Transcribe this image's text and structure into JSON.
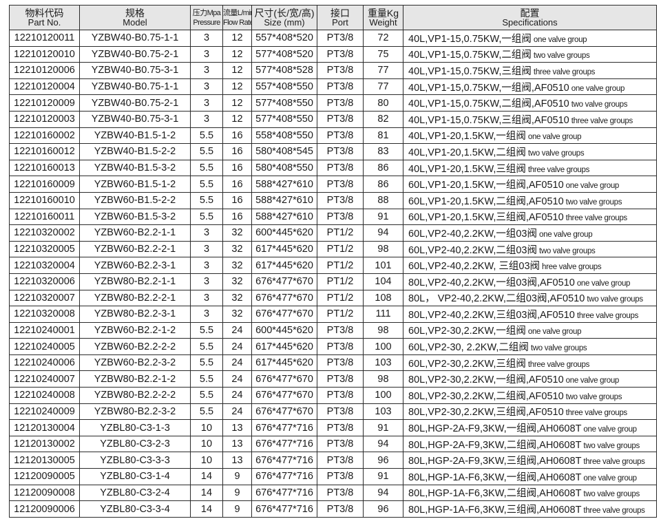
{
  "headers": [
    {
      "cn": "物料代码",
      "en": "Part No."
    },
    {
      "cn": "规格",
      "en": "Model"
    },
    {
      "cn": "压力Mpa",
      "en": "Pressure"
    },
    {
      "cn": "流量L/min",
      "en": "Flow Rate"
    },
    {
      "cn": "尺寸(长/宽/高)",
      "en": "Size (mm)"
    },
    {
      "cn": "接口",
      "en": "Port"
    },
    {
      "cn": "重量Kg",
      "en": "Weight"
    },
    {
      "cn": "配置",
      "en": "Specifications"
    }
  ],
  "rows": [
    {
      "part": "12210120011",
      "model": "YZBW40-B0.75-1-1",
      "pressure": "3",
      "flow": "12",
      "size": "557*408*520",
      "port": "PT3/8",
      "weight": "72",
      "spec": "40L,VP1-15,0.75KW,一组阀",
      "note": "one valve group"
    },
    {
      "part": "12210120010",
      "model": "YZBW40-B0.75-2-1",
      "pressure": "3",
      "flow": "12",
      "size": "577*408*520",
      "port": "PT3/8",
      "weight": "75",
      "spec": "40L,VP1-15,0.75KW,二组阀",
      "note": "two valve groups"
    },
    {
      "part": "12210120006",
      "model": "YZBW40-B0.75-3-1",
      "pressure": "3",
      "flow": "12",
      "size": "577*408*528",
      "port": "PT3/8",
      "weight": "77",
      "spec": "40L,VP1-15,0.75KW,三组阀",
      "note": "three valve groups"
    },
    {
      "part": "12210120004",
      "model": "YZBW40-B0.75-1-1",
      "pressure": "3",
      "flow": "12",
      "size": "557*408*550",
      "port": "PT3/8",
      "weight": "77",
      "spec": "40L,VP1-15,0.75KW,一组阀,AF0510",
      "note": "one valve group"
    },
    {
      "part": "12210120009",
      "model": "YZBW40-B0.75-2-1",
      "pressure": "3",
      "flow": "12",
      "size": "577*408*550",
      "port": "PT3/8",
      "weight": "80",
      "spec": "40L,VP1-15,0.75KW,二组阀,AF0510",
      "note": "two valve groups"
    },
    {
      "part": "12210120003",
      "model": "YZBW40-B0.75-3-1",
      "pressure": "3",
      "flow": "12",
      "size": "577*408*550",
      "port": "PT3/8",
      "weight": "82",
      "spec": "40L,VP1-15,0.75KW,三组阀,AF0510",
      "note": "three valve groups"
    },
    {
      "part": "12210160002",
      "model": "YZBW40-B1.5-1-2",
      "pressure": "5.5",
      "flow": "16",
      "size": "558*408*550",
      "port": "PT3/8",
      "weight": "81",
      "spec": "40L,VP1-20,1.5KW,一组阀",
      "note": "one valve group"
    },
    {
      "part": "12210160012",
      "model": "YZBW40-B1.5-2-2",
      "pressure": "5.5",
      "flow": "16",
      "size": "580*408*545",
      "port": "PT3/8",
      "weight": "83",
      "spec": "40L,VP1-20,1.5KW,二组阀",
      "note": "two valve groups"
    },
    {
      "part": "12210160013",
      "model": "YZBW40-B1.5-3-2",
      "pressure": "5.5",
      "flow": "16",
      "size": "580*408*550",
      "port": "PT3/8",
      "weight": "86",
      "spec": "40L,VP1-20,1.5KW,三组阀",
      "note": "three valve groups"
    },
    {
      "part": "12210160009",
      "model": "YZBW60-B1.5-1-2",
      "pressure": "5.5",
      "flow": "16",
      "size": "588*427*610",
      "port": "PT3/8",
      "weight": "86",
      "spec": "60L,VP1-20,1.5KW,一组阀,AF0510",
      "note": "one valve group"
    },
    {
      "part": "12210160010",
      "model": "YZBW60-B1.5-2-2",
      "pressure": "5.5",
      "flow": "16",
      "size": "588*427*610",
      "port": "PT3/8",
      "weight": "88",
      "spec": "60L,VP1-20,1.5KW,二组阀,AF0510",
      "note": "two valve groups"
    },
    {
      "part": "12210160011",
      "model": "YZBW60-B1.5-3-2",
      "pressure": "5.5",
      "flow": "16",
      "size": "588*427*610",
      "port": "PT3/8",
      "weight": "91",
      "spec": "60L,VP1-20,1.5KW,三组阀,AF0510",
      "note": "three valve groups"
    },
    {
      "part": "12210320002",
      "model": "YZBW60-B2.2-1-1",
      "pressure": "3",
      "flow": "32",
      "size": "600*445*620",
      "port": "PT1/2",
      "weight": "94",
      "spec": "60L,VP2-40,2.2KW,一组03阀",
      "note": "one valve group"
    },
    {
      "part": "12210320005",
      "model": "YZBW60-B2.2-2-1",
      "pressure": "3",
      "flow": "32",
      "size": "617*445*620",
      "port": "PT1/2",
      "weight": "98",
      "spec": "60L,VP2-40,2.2KW,二组03阀",
      "note": "two valve groups"
    },
    {
      "part": "12210320004",
      "model": "YZBW60-B2.2-3-1",
      "pressure": "3",
      "flow": "32",
      "size": "617*445*620",
      "port": "PT1/2",
      "weight": "101",
      "spec": "60L,VP2-40,2.2KW, 三组03阀",
      "note": "hree valve groups"
    },
    {
      "part": "12210320006",
      "model": "YZBW80-B2.2-1-1",
      "pressure": "3",
      "flow": "32",
      "size": "676*477*670",
      "port": "PT1/2",
      "weight": "104",
      "spec": "80L,VP2-40,2.2KW,一组03阀,AF0510",
      "note": "one valve group"
    },
    {
      "part": "12210320007",
      "model": "YZBW80-B2.2-2-1",
      "pressure": "3",
      "flow": "32",
      "size": "676*477*670",
      "port": "PT1/2",
      "weight": "108",
      "spec": "80L， VP2-40,2.2KW,二组03阀,AF0510",
      "note": "two valve groups"
    },
    {
      "part": "12210320008",
      "model": "YZBW80-B2.2-3-1",
      "pressure": "3",
      "flow": "32",
      "size": "676*477*670",
      "port": "PT1/2",
      "weight": "111",
      "spec": "80L,VP2-40,2.2KW,三组03阀,AF0510",
      "note": "three valve groups"
    },
    {
      "part": "12210240001",
      "model": "YZBW60-B2.2-1-2",
      "pressure": "5.5",
      "flow": "24",
      "size": "600*445*620",
      "port": "PT3/8",
      "weight": "98",
      "spec": "60L,VP2-30,2.2KW,一组阀",
      "note": "one valve group"
    },
    {
      "part": "12210240005",
      "model": "YZBW60-B2.2-2-2",
      "pressure": "5.5",
      "flow": "24",
      "size": "617*445*620",
      "port": "PT3/8",
      "weight": "100",
      "spec": "60L,VP2-30, 2.2KW,二组阀",
      "note": "two valve groups"
    },
    {
      "part": "12210240006",
      "model": "YZBW60-B2.2-3-2",
      "pressure": "5.5",
      "flow": "24",
      "size": "617*445*620",
      "port": "PT3/8",
      "weight": "103",
      "spec": "60L,VP2-30,2.2KW,三组阀",
      "note": "three valve groups"
    },
    {
      "part": "12210240007",
      "model": "YZBW80-B2.2-1-2",
      "pressure": "5.5",
      "flow": "24",
      "size": "676*477*670",
      "port": "PT3/8",
      "weight": "98",
      "spec": "80L,VP2-30,2.2KW,一组阀,AF0510",
      "note": "one valve group"
    },
    {
      "part": "12210240008",
      "model": "YZBW80-B2.2-2-2",
      "pressure": "5.5",
      "flow": "24",
      "size": "676*477*670",
      "port": "PT3/8",
      "weight": "100",
      "spec": "80L,VP2-30,2.2KW,二组阀,AF0510",
      "note": "two valve groups"
    },
    {
      "part": "12210240009",
      "model": "YZBW80-B2.2-3-2",
      "pressure": "5.5",
      "flow": "24",
      "size": "676*477*670",
      "port": "PT3/8",
      "weight": "103",
      "spec": "80L,VP2-30,2.2KW,三组阀,AF0510",
      "note": "three valve groups"
    },
    {
      "part": "12120130004",
      "model": "YZBL80-C3-1-3",
      "pressure": "10",
      "flow": "13",
      "size": "676*477*716",
      "port": "PT3/8",
      "weight": "91",
      "spec": "80L,HGP-2A-F9,3KW,一组阀,AH0608T",
      "note": "one valve group"
    },
    {
      "part": "12120130002",
      "model": "YZBL80-C3-2-3",
      "pressure": "10",
      "flow": "13",
      "size": "676*477*716",
      "port": "PT3/8",
      "weight": "94",
      "spec": "80L,HGP-2A-F9,3KW,二组阀,AH0608T",
      "note": "two valve groups"
    },
    {
      "part": "12120130005",
      "model": "YZBL80-C3-3-3",
      "pressure": "10",
      "flow": "13",
      "size": "676*477*716",
      "port": "PT3/8",
      "weight": "96",
      "spec": "80L,HGP-2A-F9,3KW,三组阀,AH0608T",
      "note": "three valve groups"
    },
    {
      "part": "12120090005",
      "model": "YZBL80-C3-1-4",
      "pressure": "14",
      "flow": "9",
      "size": "676*477*716",
      "port": "PT3/8",
      "weight": "91",
      "spec": "80L,HGP-1A-F6,3KW,一组阀,AH0608T",
      "note": "one valve group"
    },
    {
      "part": "12120090008",
      "model": "YZBL80-C3-2-4",
      "pressure": "14",
      "flow": "9",
      "size": "676*477*716",
      "port": "PT3/8",
      "weight": "94",
      "spec": "80L,HGP-1A-F6,3KW,二组阀,AH0608T",
      "note": "two valve groups"
    },
    {
      "part": "12120090006",
      "model": "YZBL80-C3-3-4",
      "pressure": "14",
      "flow": "9",
      "size": "676*477*716",
      "port": "PT3/8",
      "weight": "96",
      "spec": "80L,HGP-1A-F6,3KW,三组阀,AH0608T",
      "note": "three valve groups"
    }
  ]
}
